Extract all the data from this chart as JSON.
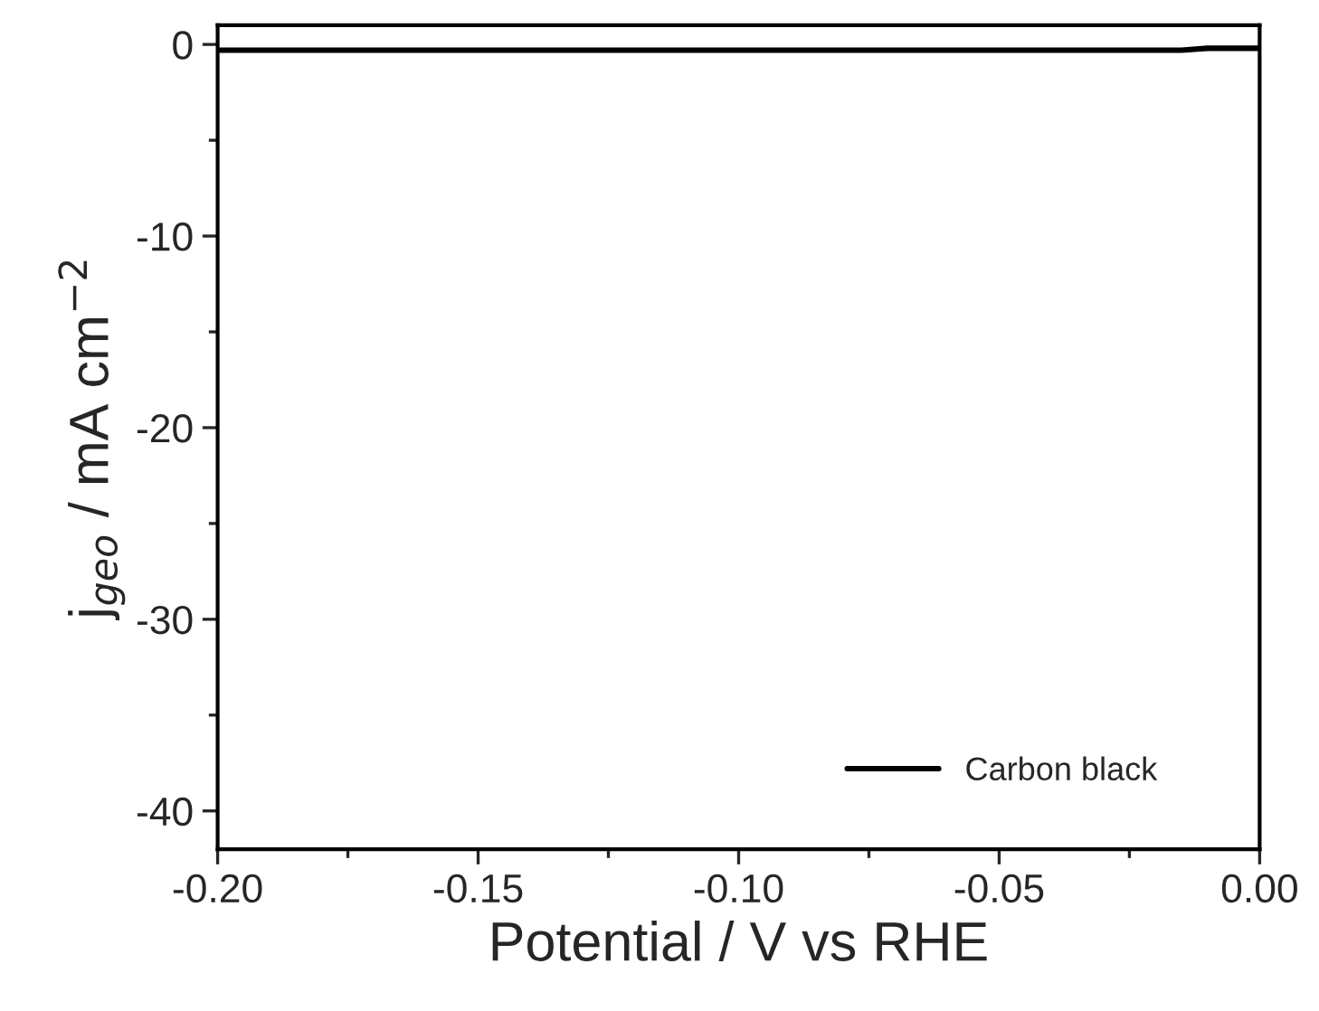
{
  "chart_data": {
    "type": "line",
    "xlabel": "Potential / V vs RHE",
    "ylabel": "j$_{geo}$ / mA cm$^{−2}$",
    "xlim": [
      -0.2,
      0.0
    ],
    "ylim": [
      -42,
      1
    ],
    "xticks": [
      {
        "value": -0.2,
        "label": "-0.20"
      },
      {
        "value": -0.15,
        "label": "-0.15"
      },
      {
        "value": -0.1,
        "label": "-0.10"
      },
      {
        "value": -0.05,
        "label": "-0.05"
      },
      {
        "value": 0.0,
        "label": "0.00"
      }
    ],
    "yticks": [
      {
        "value": -40,
        "label": "-40"
      },
      {
        "value": -30,
        "label": "-30"
      },
      {
        "value": -20,
        "label": "-20"
      },
      {
        "value": -10,
        "label": "-10"
      },
      0
    ],
    "series": [
      {
        "name": "Carbon black",
        "color": "#000000",
        "x": [
          -0.2,
          -0.15,
          -0.1,
          -0.05,
          -0.015,
          -0.01,
          0.0
        ],
        "values": [
          -0.3,
          -0.3,
          -0.3,
          -0.3,
          -0.3,
          -0.2,
          -0.2
        ]
      }
    ],
    "legend": "bottom right",
    "grid": false,
    "line_style": "solid",
    "marker": "none"
  }
}
